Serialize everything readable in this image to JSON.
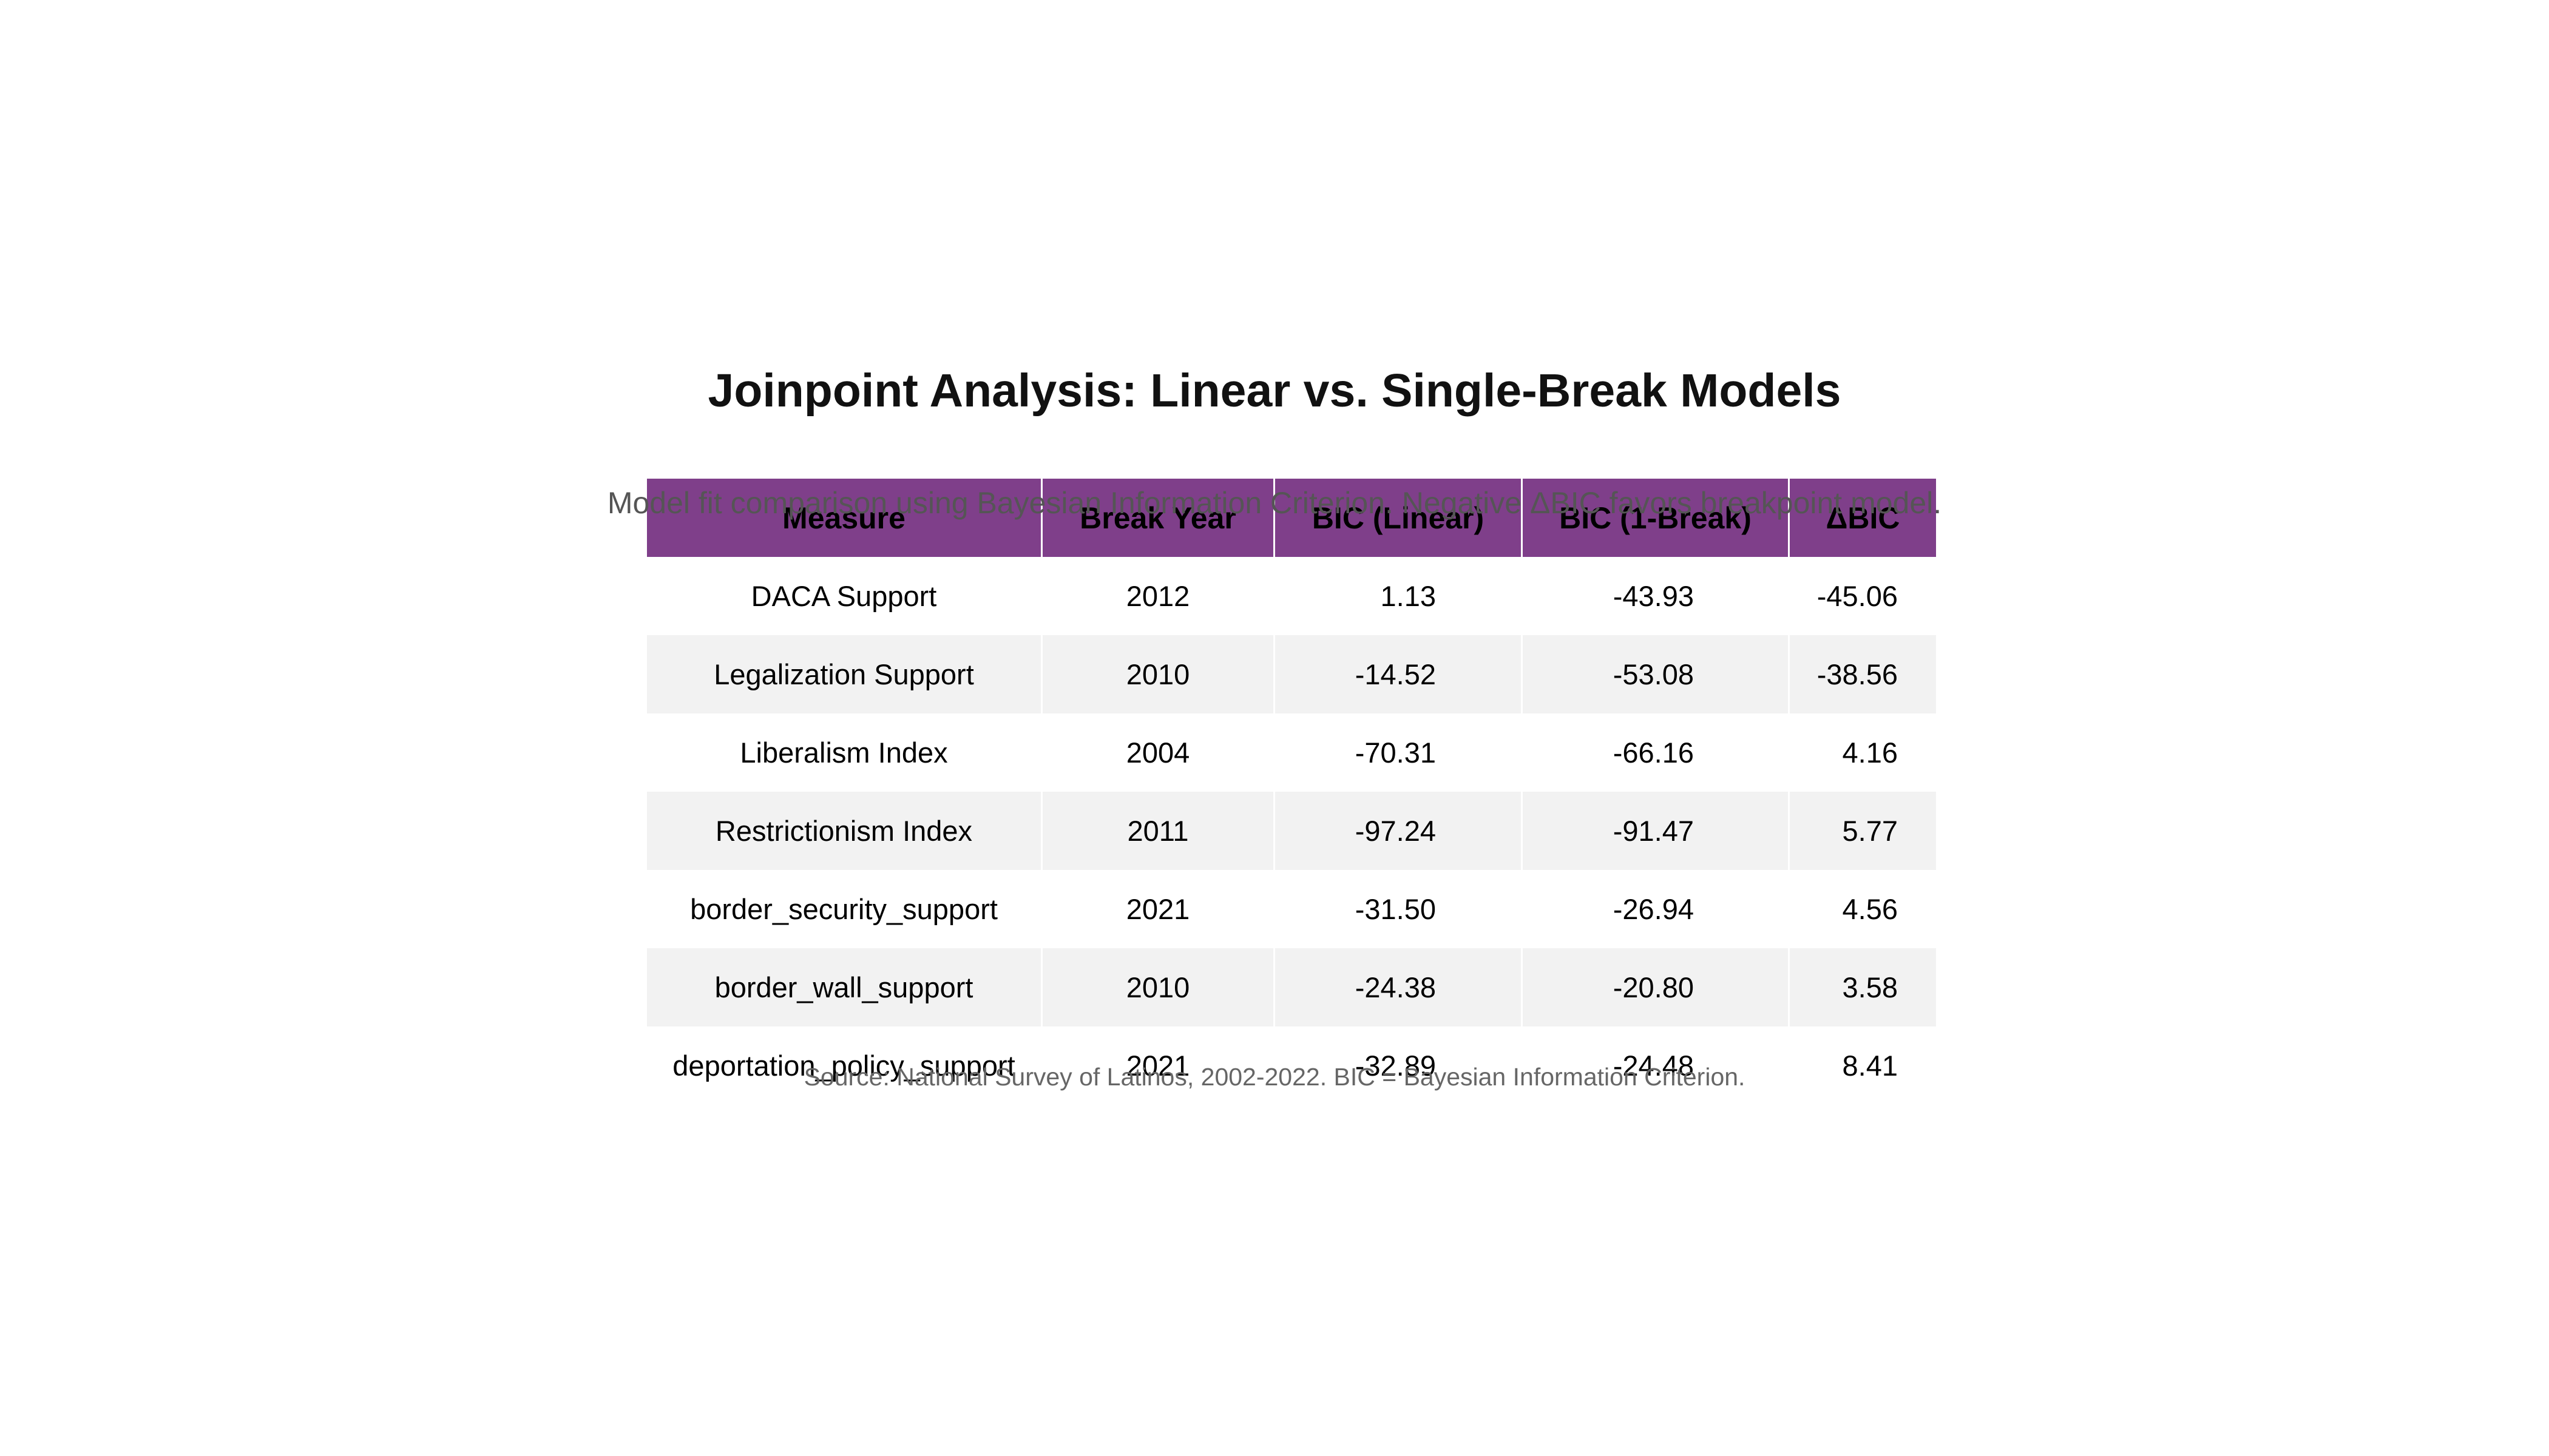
{
  "title": "Joinpoint Analysis: Linear vs. Single-Break Models",
  "subtitle": "Model fit comparison using Bayesian Information Criterion. Negative ΔBIC favors breakpoint model.",
  "source": "Source: National Survey of Latinos, 2002-2022. BIC = Bayesian Information Criterion.",
  "colors": {
    "header_bg": "#7f3f8a",
    "row_alt": "#f2f2f2"
  },
  "chart_data": {
    "type": "table",
    "title": "Joinpoint Analysis: Linear vs. Single-Break Models",
    "subtitle": "Model fit comparison using Bayesian Information Criterion. Negative ΔBIC favors breakpoint model.",
    "columns": [
      "Measure",
      "Break Year",
      "BIC (Linear)",
      "BIC (1-Break)",
      "ΔBIC"
    ],
    "rows": [
      [
        "DACA Support",
        "2012",
        "1.13",
        "-43.93",
        "-45.06"
      ],
      [
        "Legalization Support",
        "2010",
        "-14.52",
        "-53.08",
        "-38.56"
      ],
      [
        "Liberalism Index",
        "2004",
        "-70.31",
        "-66.16",
        "4.16"
      ],
      [
        "Restrictionism Index",
        "2011",
        "-97.24",
        "-91.47",
        "5.77"
      ],
      [
        "border_security_support",
        "2021",
        "-31.50",
        "-26.94",
        "4.56"
      ],
      [
        "border_wall_support",
        "2010",
        "-24.38",
        "-20.80",
        "3.58"
      ],
      [
        "deportation_policy_support",
        "2021",
        "-32.89",
        "-24.48",
        "8.41"
      ]
    ]
  }
}
